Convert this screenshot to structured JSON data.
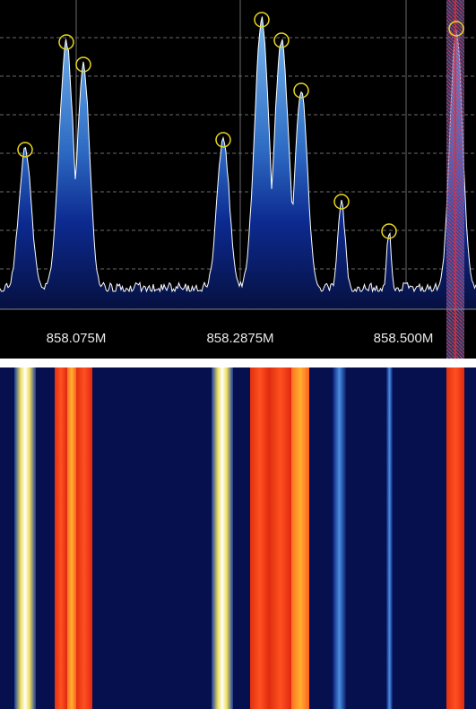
{
  "axis": {
    "labels": [
      "858.075M",
      "858.2875M",
      "858.500M"
    ]
  }
}
